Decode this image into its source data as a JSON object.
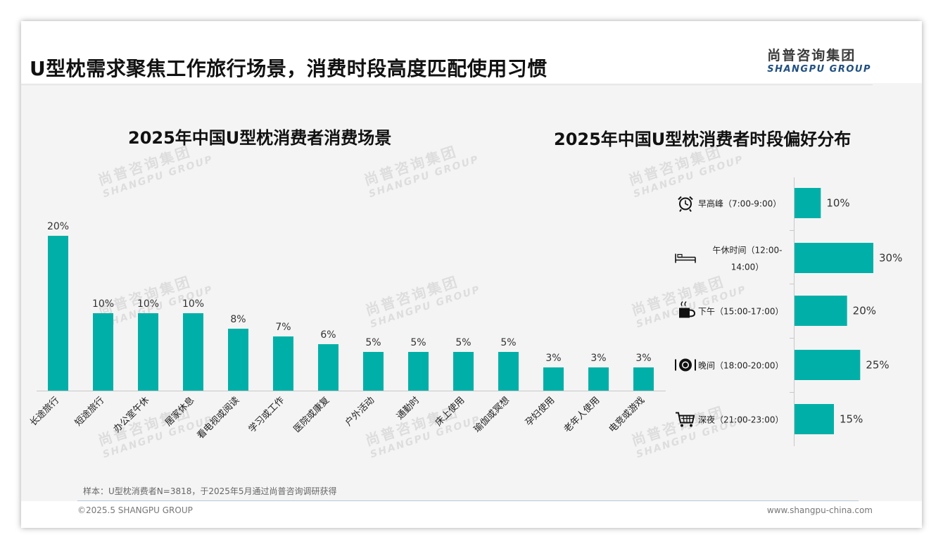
{
  "header": {
    "title": "U型枕需求聚焦工作旅行场景，消费时段高度匹配使用习惯",
    "logo_cn": "尚普咨询集团",
    "logo_en": "SHANGPU GROUP"
  },
  "watermark": {
    "cn": "尚普咨询集团",
    "en": "SHANGPU GROUP"
  },
  "footer": {
    "note": "样本：U型枕消费者N=3818，于2025年5月通过尚普咨询调研获得",
    "copyright": "©2025.5 SHANGPU GROUP",
    "website": "www.shangpu-china.com"
  },
  "colors": {
    "bar": "#00b0a8",
    "text": "#333333",
    "axis": "#bbbbbb"
  },
  "chart_data": [
    {
      "type": "bar",
      "title": "2025年中国U型枕消费者消费场景",
      "categories": [
        "长途旅行",
        "短途旅行",
        "办公室午休",
        "居家休息",
        "看电视或阅读",
        "学习或工作",
        "医院或康复",
        "户外活动",
        "通勤时",
        "床上使用",
        "瑜伽或冥想",
        "孕妇使用",
        "老年人使用",
        "电竞或游戏"
      ],
      "values": [
        20,
        10,
        10,
        10,
        8,
        7,
        6,
        5,
        5,
        5,
        5,
        3,
        3,
        3
      ],
      "value_labels": [
        "20%",
        "10%",
        "10%",
        "10%",
        "8%",
        "7%",
        "6%",
        "5%",
        "5%",
        "5%",
        "5%",
        "3%",
        "3%",
        "3%"
      ],
      "ylim": [
        0,
        20
      ]
    },
    {
      "type": "bar",
      "orientation": "horizontal",
      "title": "2025年中国U型枕消费者时段偏好分布",
      "categories": [
        {
          "label": "早高峰（7:00-9:00）",
          "icon": "alarm-clock-icon"
        },
        {
          "label_lines": [
            "午休时间（12:00-",
            "14:00）"
          ],
          "icon": "bed-icon"
        },
        {
          "label": "下午（15:00-17:00）",
          "icon": "coffee-cup-icon"
        },
        {
          "label": "晚间（18:00-20:00）",
          "icon": "dinner-plate-icon"
        },
        {
          "label": "深夜（21:00-23:00）",
          "icon": "shopping-cart-icon"
        }
      ],
      "values": [
        10,
        30,
        20,
        25,
        15
      ],
      "value_labels": [
        "10%",
        "30%",
        "20%",
        "25%",
        "15%"
      ],
      "xlim": [
        0,
        30
      ]
    }
  ]
}
